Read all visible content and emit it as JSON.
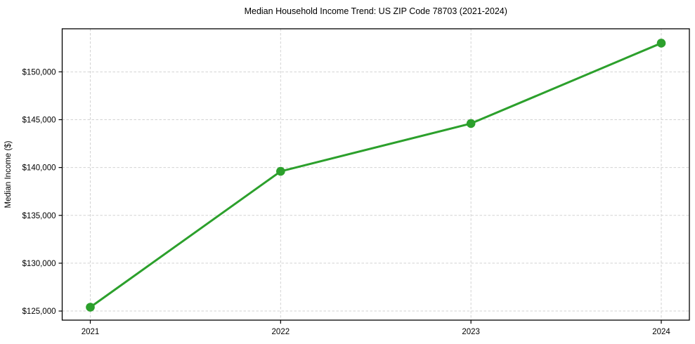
{
  "chart_data": {
    "type": "line",
    "title": "Median Household Income Trend: US ZIP Code 78703 (2021-2024)",
    "xlabel": "",
    "ylabel": "Median Income ($)",
    "categories": [
      "2021",
      "2022",
      "2023",
      "2024"
    ],
    "series": [
      {
        "name": "Median Household Income",
        "values": [
          125400,
          139600,
          144600,
          153000
        ]
      }
    ],
    "yticks": [
      125000,
      130000,
      135000,
      140000,
      145000,
      150000
    ],
    "ytick_labels": [
      "$125,000",
      "$130,000",
      "$135,000",
      "$140,000",
      "$145,000",
      "$150,000"
    ],
    "ylim": [
      124050,
      154500
    ],
    "grid": true,
    "legend": "none",
    "colors": {
      "line": "#2ca02c",
      "marker": "#2ca02c",
      "grid": "#d2d2d2",
      "spine": "#000000",
      "text": "#000000",
      "background": "#ffffff"
    }
  }
}
